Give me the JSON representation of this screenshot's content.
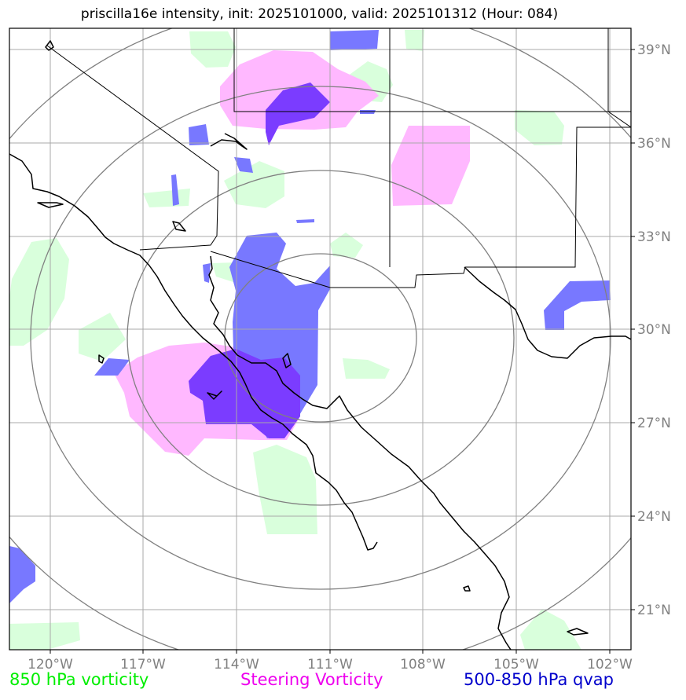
{
  "map": {
    "title": "priscilla16e intensity, init: 2025101000, valid: 2025101312 (Hour: 084)",
    "lon_ticks": [
      "120°W",
      "117°W",
      "114°W",
      "111°W",
      "108°W",
      "105°W",
      "102°W"
    ],
    "lat_ticks": [
      "39°N",
      "36°N",
      "33°N",
      "30°N",
      "27°N",
      "24°N",
      "21°N"
    ],
    "lon_range": [
      -121.3,
      -101.3
    ],
    "lat_range": [
      19.8,
      39.7
    ]
  },
  "legend": [
    {
      "label": "850 hPa vorticity",
      "color": "#00ee00"
    },
    {
      "label": "Steering Vorticity",
      "color": "#ee00ee"
    },
    {
      "label": "500-850 hPa qvap",
      "color": "#0000cc"
    }
  ],
  "colors": {
    "vorticity_850": "#d9ffdc",
    "steering": "#ffb8ff",
    "qvap": "#7878ff",
    "overlap": "#7b3cff",
    "grid": "#a9a9a9",
    "rings": "#808080"
  }
}
